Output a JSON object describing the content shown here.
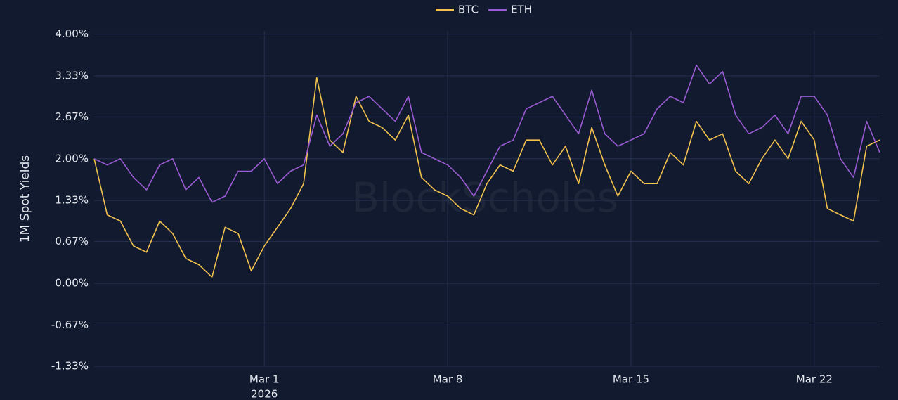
{
  "chart_data": {
    "type": "line",
    "y_label": "1M Spot Yields",
    "watermark": "BlockScholes",
    "x_year": "2026",
    "x": [
      "2026-02-22T12:00",
      "2026-02-23T00:00",
      "2026-02-23T12:00",
      "2026-02-24T00:00",
      "2026-02-24T12:00",
      "2026-02-25T00:00",
      "2026-02-25T12:00",
      "2026-02-26T00:00",
      "2026-02-26T12:00",
      "2026-02-27T00:00",
      "2026-02-27T12:00",
      "2026-02-28T00:00",
      "2026-02-28T12:00",
      "2026-03-01T00:00",
      "2026-03-01T12:00",
      "2026-03-02T00:00",
      "2026-03-02T12:00",
      "2026-03-03T00:00",
      "2026-03-03T12:00",
      "2026-03-04T00:00",
      "2026-03-04T12:00",
      "2026-03-05T00:00",
      "2026-03-05T12:00",
      "2026-03-06T00:00",
      "2026-03-06T12:00",
      "2026-03-07T00:00",
      "2026-03-07T12:00",
      "2026-03-08T00:00",
      "2026-03-08T12:00",
      "2026-03-09T00:00",
      "2026-03-09T12:00",
      "2026-03-10T00:00",
      "2026-03-10T12:00",
      "2026-03-11T00:00",
      "2026-03-11T12:00",
      "2026-03-12T00:00",
      "2026-03-12T12:00",
      "2026-03-13T00:00",
      "2026-03-13T12:00",
      "2026-03-14T00:00",
      "2026-03-14T12:00",
      "2026-03-15T00:00",
      "2026-03-15T12:00",
      "2026-03-16T00:00",
      "2026-03-16T12:00",
      "2026-03-17T00:00",
      "2026-03-17T12:00",
      "2026-03-18T00:00",
      "2026-03-18T12:00",
      "2026-03-19T00:00",
      "2026-03-19T12:00",
      "2026-03-20T00:00",
      "2026-03-20T12:00",
      "2026-03-21T00:00",
      "2026-03-21T12:00",
      "2026-03-22T00:00",
      "2026-03-22T12:00",
      "2026-03-23T00:00",
      "2026-03-23T12:00",
      "2026-03-24T00:00",
      "2026-03-24T12:00"
    ],
    "series": [
      {
        "name": "BTC",
        "color": "#f2c14e",
        "values": [
          2.0,
          1.1,
          1.0,
          0.6,
          0.5,
          1.0,
          0.8,
          0.4,
          0.3,
          0.1,
          0.9,
          0.8,
          0.2,
          0.6,
          0.9,
          1.2,
          1.6,
          3.3,
          2.3,
          2.1,
          3.0,
          2.6,
          2.5,
          2.3,
          2.7,
          1.7,
          1.5,
          1.4,
          1.2,
          1.1,
          1.6,
          1.9,
          1.8,
          2.3,
          2.3,
          1.9,
          2.2,
          1.6,
          2.5,
          1.9,
          1.4,
          1.8,
          1.6,
          1.6,
          2.1,
          1.9,
          2.6,
          2.3,
          2.4,
          1.8,
          1.6,
          2.0,
          2.3,
          2.0,
          2.6,
          2.3,
          1.2,
          1.1,
          1.0,
          2.2,
          2.3
        ]
      },
      {
        "name": "ETH",
        "color": "#9b5bd4",
        "values": [
          2.0,
          1.9,
          2.0,
          1.7,
          1.5,
          1.9,
          2.0,
          1.5,
          1.7,
          1.3,
          1.4,
          1.8,
          1.8,
          2.0,
          1.6,
          1.8,
          1.9,
          2.7,
          2.2,
          2.4,
          2.9,
          3.0,
          2.8,
          2.6,
          3.0,
          2.1,
          2.0,
          1.9,
          1.7,
          1.4,
          1.8,
          2.2,
          2.3,
          2.8,
          2.9,
          3.0,
          2.7,
          2.4,
          3.1,
          2.4,
          2.2,
          2.3,
          2.4,
          2.8,
          3.0,
          2.9,
          3.5,
          3.2,
          3.4,
          2.7,
          2.4,
          2.5,
          2.7,
          2.4,
          3.0,
          3.0,
          2.7,
          2.0,
          1.7,
          2.6,
          2.1
        ]
      }
    ],
    "xlim": [
      "2026-02-22T12:00",
      "2026-03-24T12:00"
    ],
    "xticks": [
      {
        "value": "2026-03-01T00:00",
        "label": "Mar 1"
      },
      {
        "value": "2026-03-08T00:00",
        "label": "Mar 8"
      },
      {
        "value": "2026-03-15T00:00",
        "label": "Mar 15"
      },
      {
        "value": "2026-03-22T00:00",
        "label": "Mar 22"
      }
    ],
    "ylim": [
      -1.33,
      4.05
    ],
    "yticks": [
      {
        "value": -1.33,
        "label": "-1.33%"
      },
      {
        "value": -0.67,
        "label": "-0.67%"
      },
      {
        "value": 0,
        "label": "0.00%"
      },
      {
        "value": 0.67,
        "label": "0.67%"
      },
      {
        "value": 1.33,
        "label": "1.33%"
      },
      {
        "value": 2.0,
        "label": "2.00%"
      },
      {
        "value": 2.67,
        "label": "2.67%"
      },
      {
        "value": 3.33,
        "label": "3.33%"
      },
      {
        "value": 4.0,
        "label": "4.00%"
      }
    ],
    "grid": true
  }
}
